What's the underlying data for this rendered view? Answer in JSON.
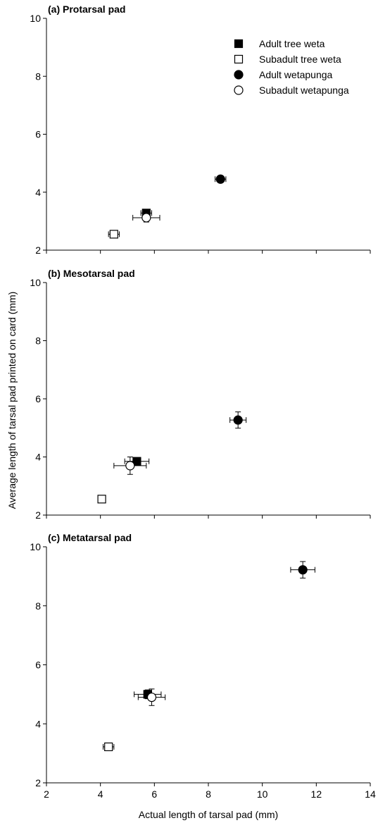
{
  "chart_data": [
    {
      "type": "scatter",
      "title": "(a) Protarsal pad",
      "ylim": [
        2,
        10
      ],
      "yticks": [
        2,
        4,
        6,
        8,
        10
      ],
      "series": [
        {
          "name": "Adult tree weta",
          "marker": "square-filled",
          "x": [
            5.7
          ],
          "y": [
            3.28
          ],
          "xerr": [
            0.2
          ],
          "yerr": [
            0.08
          ]
        },
        {
          "name": "Subadult tree weta",
          "marker": "square-open",
          "x": [
            4.5
          ],
          "y": [
            2.55
          ],
          "xerr": [
            0.2
          ],
          "yerr": [
            0.08
          ]
        },
        {
          "name": "Adult wetapunga",
          "marker": "circle-filled",
          "x": [
            8.45
          ],
          "y": [
            4.45
          ],
          "xerr": [
            0.2
          ],
          "yerr": [
            0.1
          ]
        },
        {
          "name": "Subadult wetapunga",
          "marker": "circle-open",
          "x": [
            5.7
          ],
          "y": [
            3.12
          ],
          "xerr": [
            0.5
          ],
          "yerr": [
            0.15
          ]
        }
      ]
    },
    {
      "type": "scatter",
      "title": "(b) Mesotarsal pad",
      "ylim": [
        2,
        10
      ],
      "yticks": [
        2,
        4,
        6,
        8,
        10
      ],
      "series": [
        {
          "name": "Adult tree weta",
          "marker": "square-filled",
          "x": [
            5.35
          ],
          "y": [
            3.85
          ],
          "xerr": [
            0.45
          ],
          "yerr": [
            0.12
          ]
        },
        {
          "name": "Subadult tree weta",
          "marker": "square-open",
          "x": [
            4.05
          ],
          "y": [
            2.55
          ],
          "xerr": [
            0.1
          ],
          "yerr": [
            0.1
          ]
        },
        {
          "name": "Adult wetapunga",
          "marker": "circle-filled",
          "x": [
            9.1
          ],
          "y": [
            5.27
          ],
          "xerr": [
            0.3
          ],
          "yerr": [
            0.28
          ]
        },
        {
          "name": "Subadult wetapunga",
          "marker": "circle-open",
          "x": [
            5.1
          ],
          "y": [
            3.7
          ],
          "xerr": [
            0.6
          ],
          "yerr": [
            0.3
          ]
        }
      ]
    },
    {
      "type": "scatter",
      "title": "(c) Metatarsal pad",
      "xlabel": "Actual length of tarsal pad (mm)",
      "xlim": [
        2,
        14
      ],
      "xticks": [
        2,
        4,
        6,
        8,
        10,
        12,
        14
      ],
      "ylim": [
        2,
        10
      ],
      "yticks": [
        2,
        4,
        6,
        8,
        10
      ],
      "series": [
        {
          "name": "Adult tree weta",
          "marker": "square-filled",
          "x": [
            5.75
          ],
          "y": [
            5.0
          ],
          "xerr": [
            0.5
          ],
          "yerr": [
            0.15
          ]
        },
        {
          "name": "Subadult tree weta",
          "marker": "square-open",
          "x": [
            4.3
          ],
          "y": [
            3.22
          ],
          "xerr": [
            0.2
          ],
          "yerr": [
            0.1
          ]
        },
        {
          "name": "Adult wetapunga",
          "marker": "circle-filled",
          "x": [
            11.5
          ],
          "y": [
            9.22
          ],
          "xerr": [
            0.45
          ],
          "yerr": [
            0.28
          ]
        },
        {
          "name": "Subadult wetapunga",
          "marker": "circle-open",
          "x": [
            5.9
          ],
          "y": [
            4.9
          ],
          "xerr": [
            0.5
          ],
          "yerr": [
            0.28
          ]
        }
      ]
    }
  ],
  "shared": {
    "ylabel": "Average length of tarsal pad printed on card (mm)",
    "legend": {
      "placement": "top-right of panel (a)",
      "entries": [
        {
          "label": "Adult tree weta",
          "marker": "square-filled"
        },
        {
          "label": "Subadult tree weta",
          "marker": "square-open"
        },
        {
          "label": "Adult wetapunga",
          "marker": "circle-filled"
        },
        {
          "label": "Subadult wetapunga",
          "marker": "circle-open"
        }
      ]
    },
    "colors": {
      "axis": "#000000",
      "marker_fill": "#000000",
      "marker_open_fill": "#ffffff",
      "error_bar": "#000000"
    }
  }
}
